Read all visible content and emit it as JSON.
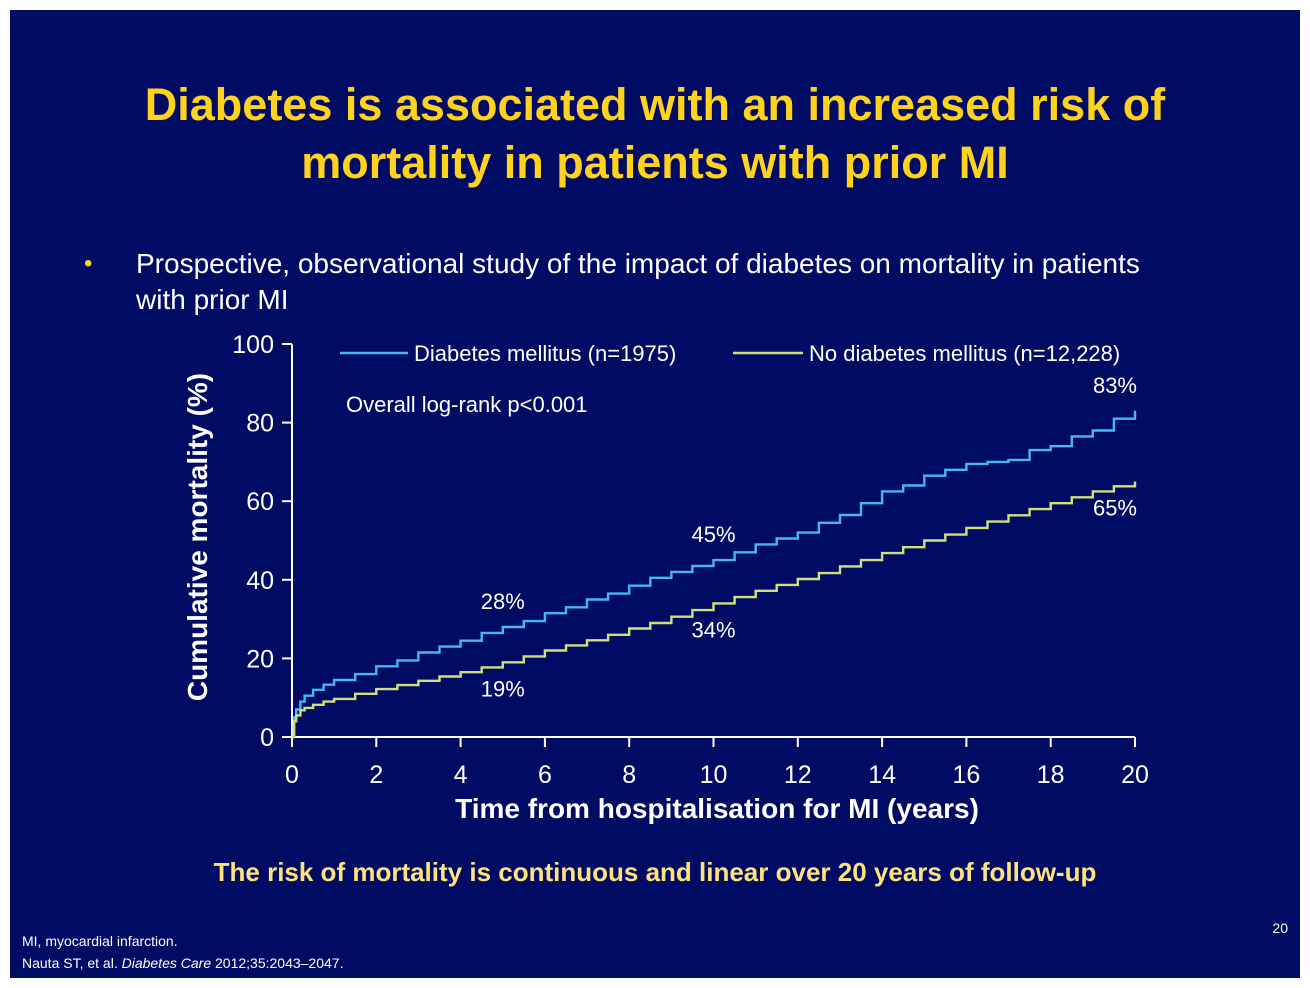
{
  "slide": {
    "title_line1": "Diabetes is associated with an increased risk of",
    "title_line2": "mortality in patients with prior MI",
    "bullet_marker": "•",
    "bullet_text": "Prospective, observational study of the impact of diabetes on mortality in patients with prior MI",
    "conclusion": "The risk of mortality is continuous and linear over 20 years of follow-up",
    "footnote_line1": "MI, myocardial infarction.",
    "footnote_author": "Nauta ST, et al. ",
    "footnote_journal": "Diabetes Care",
    "footnote_citation": " 2012;35:2043–2047.",
    "page_number": "20",
    "colors": {
      "background": "#000b64",
      "title": "#ffd21e",
      "conclusion": "#ffe27a",
      "diabetes": "#45b8f0",
      "no_diabetes": "#cfe27a",
      "text": "#ffffff"
    }
  },
  "chart_data": {
    "type": "line",
    "xlabel": "Time from hospitalisation for MI (years)",
    "ylabel": "Cumulative mortality (%)",
    "xlim": [
      0,
      20
    ],
    "ylim": [
      0,
      100
    ],
    "xticks": [
      0,
      2,
      4,
      6,
      8,
      10,
      12,
      14,
      16,
      18,
      20
    ],
    "yticks": [
      0,
      20,
      40,
      60,
      80,
      100
    ],
    "grid": false,
    "legend_position": "top",
    "annotation": "Overall log-rank p<0.001",
    "series": [
      {
        "name": "Diabetes mellitus (n=1975)",
        "color": "#45b8f0",
        "x": [
          0,
          0.05,
          0.1,
          0.2,
          0.3,
          0.5,
          0.75,
          1,
          1.5,
          2,
          2.5,
          3,
          3.5,
          4,
          4.5,
          5,
          5.5,
          6,
          6.5,
          7,
          7.5,
          8,
          8.5,
          9,
          9.5,
          10,
          10.5,
          11,
          11.5,
          12,
          12.5,
          13,
          13.5,
          14,
          14.5,
          15,
          15.5,
          16,
          16.5,
          17,
          17.5,
          18,
          18.5,
          19,
          19.5,
          20
        ],
        "y": [
          0,
          5,
          7,
          9,
          10.5,
          12,
          13.3,
          14.5,
          16,
          18,
          19.5,
          21.5,
          23,
          24.5,
          26.5,
          28,
          29.5,
          31.5,
          33,
          35,
          36.5,
          38.5,
          40.5,
          42,
          43.5,
          45,
          47,
          49,
          50.5,
          52,
          54.5,
          56.5,
          59.5,
          62.5,
          64,
          66.5,
          68,
          69.5,
          70,
          70.5,
          73,
          74,
          76.5,
          78,
          81,
          83
        ]
      },
      {
        "name": "No diabetes mellitus (n=12,228)",
        "color": "#cfe27a",
        "x": [
          0,
          0.05,
          0.1,
          0.2,
          0.3,
          0.5,
          0.75,
          1,
          1.5,
          2,
          2.5,
          3,
          3.5,
          4,
          4.5,
          5,
          5.5,
          6,
          6.5,
          7,
          7.5,
          8,
          8.5,
          9,
          9.5,
          10,
          10.5,
          11,
          11.5,
          12,
          12.5,
          13,
          13.5,
          14,
          14.5,
          15,
          15.5,
          16,
          16.5,
          17,
          17.5,
          18,
          18.5,
          19,
          19.5,
          20
        ],
        "y": [
          0,
          4,
          5.5,
          6.8,
          7.4,
          8.2,
          9,
          9.7,
          11,
          12.2,
          13.2,
          14.3,
          15.4,
          16.5,
          17.7,
          19,
          20.5,
          22,
          23.3,
          24.6,
          26,
          27.6,
          29,
          30.6,
          32.3,
          34,
          35.6,
          37.2,
          38.7,
          40.2,
          41.7,
          43.4,
          45,
          46.8,
          48.3,
          50,
          51.5,
          53.2,
          54.8,
          56.4,
          58,
          59.5,
          61,
          62.5,
          63.8,
          65
        ]
      }
    ],
    "data_labels": [
      {
        "text": "28%",
        "x": 5,
        "y": 28,
        "series": 0,
        "placement": "above"
      },
      {
        "text": "45%",
        "x": 10,
        "y": 45,
        "series": 0,
        "placement": "above"
      },
      {
        "text": "83%",
        "x": 20,
        "y": 83,
        "series": 0,
        "placement": "above"
      },
      {
        "text": "19%",
        "x": 5,
        "y": 19,
        "series": 1,
        "placement": "below"
      },
      {
        "text": "34%",
        "x": 10,
        "y": 34,
        "series": 1,
        "placement": "below"
      },
      {
        "text": "65%",
        "x": 20,
        "y": 65,
        "series": 1,
        "placement": "below"
      }
    ]
  }
}
